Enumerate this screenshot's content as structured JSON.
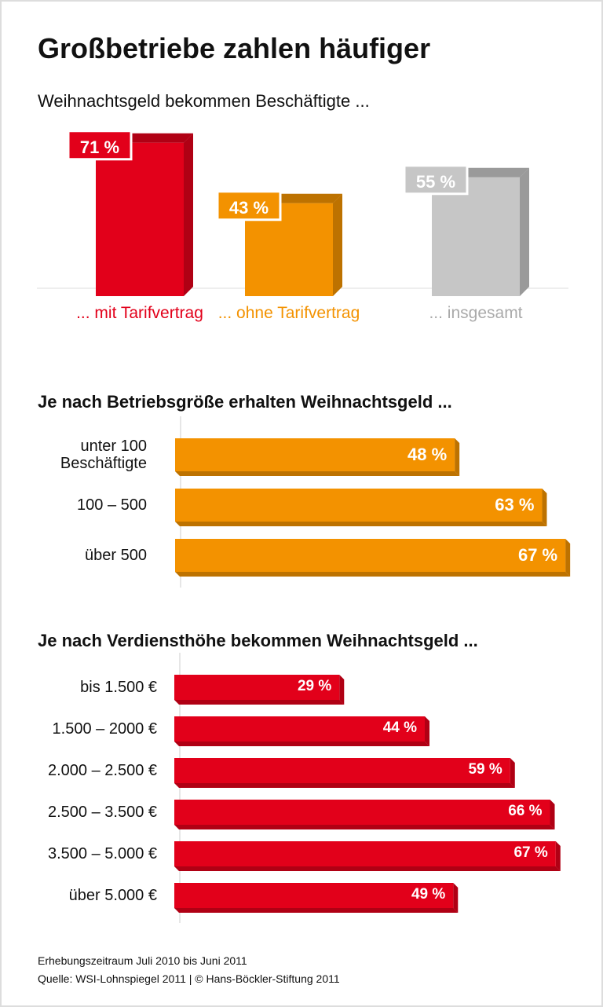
{
  "title": "Großbetriebe zahlen häufiger",
  "footnotes": [
    "Erhebungszeitraum Juli 2010 bis Juni 2011",
    "Quelle: WSI-Lohnspiegel 2011 | © Hans-Böckler-Stiftung 2011"
  ],
  "chart_data": [
    {
      "type": "bar",
      "title": "Weihnachtsgeld bekommen Beschäftigte ...",
      "categories": [
        "... mit Tarifvertrag",
        "... ohne Tarifvertrag",
        "... insgesamt"
      ],
      "values": [
        71,
        43,
        55
      ],
      "value_labels": [
        "71 %",
        "43 %",
        "55 %"
      ],
      "colors": [
        "#e2001a",
        "#f39200",
        "#c6c6c6"
      ]
    },
    {
      "type": "barh",
      "title": "Je nach Betriebsgröße erhalten Weihnachtsgeld ...",
      "categories": [
        "unter 100 Beschäftigte",
        "100 – 500",
        "über 500"
      ],
      "values": [
        48,
        63,
        67
      ],
      "value_labels": [
        "48 %",
        "63 %",
        "67 %"
      ],
      "color": "#f39200"
    },
    {
      "type": "barh",
      "title": "Je nach Verdiensthöhe bekommen Weihnachtsgeld ...",
      "categories": [
        "bis 1.500 €",
        "1.500 – 2000 €",
        "2.000 – 2.500 €",
        "2.500 – 3.500 €",
        "3.500 – 5.000 €",
        "über 5.000 €"
      ],
      "values": [
        29,
        44,
        59,
        66,
        67,
        49
      ],
      "value_labels": [
        "29 %",
        "44 %",
        "59 %",
        "66 %",
        "67 %",
        "49 %"
      ],
      "color": "#e2001a"
    }
  ]
}
